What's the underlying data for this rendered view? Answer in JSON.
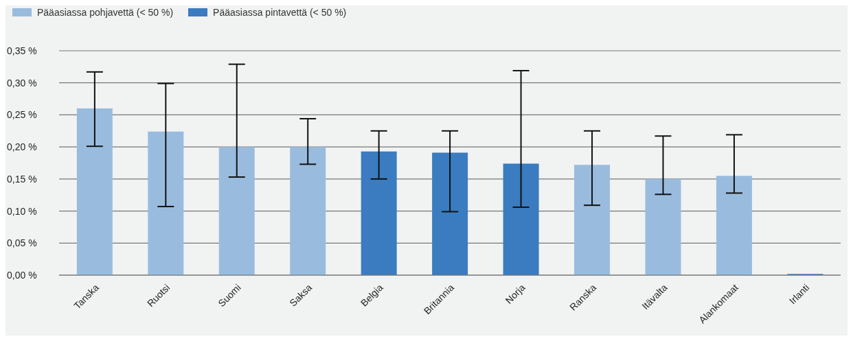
{
  "chart_data": {
    "type": "bar",
    "stacked": true,
    "legend": "top left",
    "grid": "y",
    "categories": [
      "Tanska",
      "Ruotsi",
      "Suomi",
      "Saksa",
      "Belgia",
      "Britannia",
      "Norja",
      "Ranska",
      "Itävalta",
      "Alankomaat",
      "Irlanti"
    ],
    "series": [
      {
        "name": "Pääasiassa pohjavettä (< 50 %)",
        "color": "#99bcde",
        "values": [
          0.26,
          0.224,
          0.2,
          0.2,
          null,
          null,
          null,
          0.172,
          0.15,
          0.155,
          null
        ],
        "errors": [
          [
            0.201,
            0.317
          ],
          [
            0.107,
            0.299
          ],
          [
            0.153,
            0.329
          ],
          [
            0.173,
            0.244
          ],
          null,
          null,
          null,
          [
            0.109,
            0.225
          ],
          [
            0.126,
            0.217
          ],
          [
            0.128,
            0.219
          ],
          null
        ]
      },
      {
        "name": "Pääasiassa pintavettä (< 50 %)",
        "color": "#3a7cbf",
        "values": [
          null,
          null,
          null,
          null,
          0.193,
          0.191,
          0.174,
          null,
          null,
          null,
          0.002
        ],
        "errors": [
          null,
          null,
          null,
          null,
          [
            0.15,
            0.225
          ],
          [
            0.099,
            0.225
          ],
          [
            0.106,
            0.319
          ],
          null,
          null,
          null,
          null
        ]
      }
    ],
    "ylim": [
      0,
      0.35
    ],
    "yticks": [
      {
        "value": 0,
        "label": "0,00 %"
      },
      {
        "value": 0.05,
        "label": "0,05 %"
      },
      {
        "value": 0.1,
        "label": "0,10 %"
      },
      {
        "value": 0.15,
        "label": "0,15 %"
      },
      {
        "value": 0.2,
        "label": "0,20 %"
      },
      {
        "value": 0.25,
        "label": "0,25 %"
      },
      {
        "value": 0.3,
        "label": "0,30 %"
      },
      {
        "value": 0.35,
        "label": "0,35 %"
      }
    ]
  }
}
